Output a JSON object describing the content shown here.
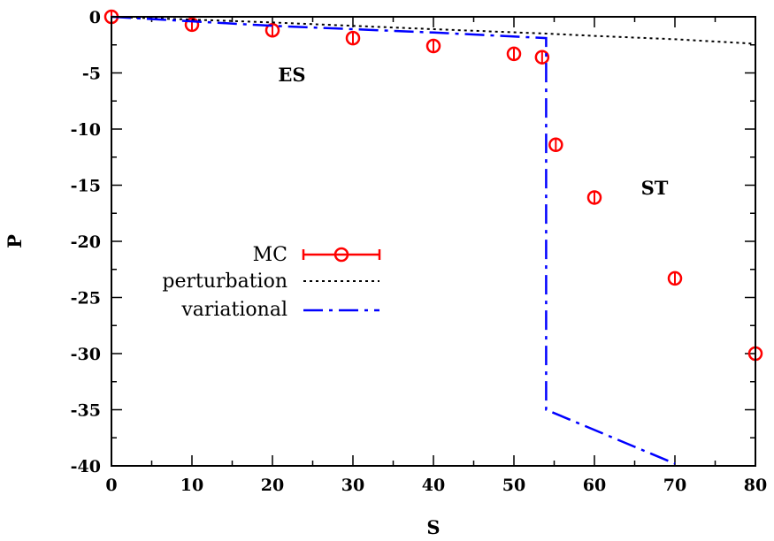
{
  "chart_data": {
    "type": "line",
    "xlabel": "S",
    "ylabel": "P",
    "xlim": [
      0,
      80
    ],
    "ylim": [
      -40,
      0
    ],
    "xticks": [
      0,
      10,
      20,
      30,
      40,
      50,
      60,
      70,
      80
    ],
    "yticks": [
      0,
      -5,
      -10,
      -15,
      -20,
      -25,
      -30,
      -35,
      -40
    ],
    "grid": false,
    "legend_position": "center-left",
    "annotations": [
      {
        "text": "ES",
        "x": 22.5,
        "y": -5.1
      },
      {
        "text": "ST",
        "x": 67.5,
        "y": -15.0
      }
    ],
    "series": [
      {
        "name": "MC",
        "style": "points-with-errorbars",
        "marker": "open-circle",
        "color": "#ff0000",
        "x": [
          0,
          10,
          20,
          30,
          40,
          50,
          53.5,
          55.2,
          60,
          70,
          80
        ],
        "y": [
          0,
          -0.7,
          -1.2,
          -1.9,
          -2.6,
          -3.3,
          -3.6,
          -11.4,
          -16.1,
          -23.3,
          -30.0
        ]
      },
      {
        "name": "perturbation",
        "style": "dotted",
        "color": "#000000",
        "x": [
          0,
          20,
          40,
          54,
          60,
          70,
          80
        ],
        "y": [
          0,
          -0.5,
          -1.1,
          -1.5,
          -1.7,
          -2.0,
          -2.4
        ]
      },
      {
        "name": "variational",
        "style": "dash-dot",
        "color": "#0000ff",
        "x": [
          0,
          20,
          40,
          54,
          54,
          54,
          70
        ],
        "y": [
          0,
          -0.8,
          -1.4,
          -1.9,
          -1.9,
          -35.0,
          -39.8
        ]
      }
    ]
  }
}
